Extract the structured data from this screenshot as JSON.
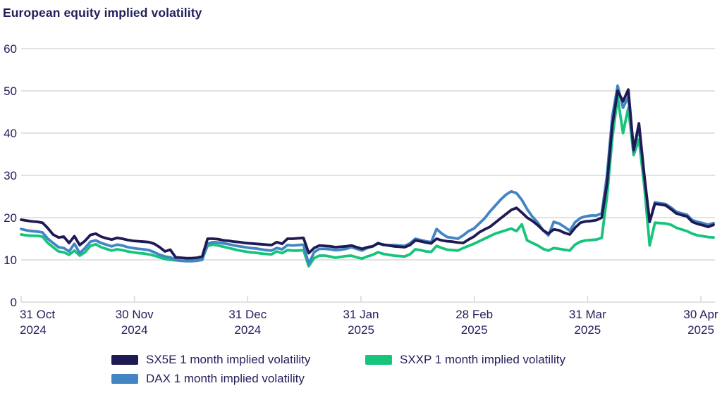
{
  "title": "European equity implied volatility",
  "chart_data": {
    "type": "line",
    "title": "European equity implied volatility",
    "xlabel": "",
    "ylabel": "",
    "ylim": [
      0,
      60
    ],
    "y_ticks": [
      0,
      10,
      20,
      30,
      40,
      50,
      60
    ],
    "x_tick_labels": [
      [
        "31 Oct",
        "2024"
      ],
      [
        "30 Nov",
        "2024"
      ],
      [
        "31 Dec",
        "2024"
      ],
      [
        "31 Jan",
        "2025"
      ],
      [
        "28 Feb",
        "2025"
      ],
      [
        "31 Mar",
        "2025"
      ],
      [
        "30 Apr",
        "2025"
      ]
    ],
    "grid": "horizontal",
    "legend_position": "bottom",
    "axis_color": "#d8d8d8",
    "label_color": "#23205c",
    "series": [
      {
        "name": "SX5E 1 month implied volatility",
        "color": "#1e1a53",
        "values": [
          19.5,
          19.3,
          19.1,
          19.0,
          18.8,
          17.5,
          16.0,
          15.3,
          15.5,
          14.0,
          15.6,
          13.5,
          14.5,
          15.9,
          16.2,
          15.5,
          15.1,
          14.8,
          15.2,
          15.0,
          14.7,
          14.5,
          14.4,
          14.3,
          14.2,
          13.8,
          13.0,
          12.0,
          12.4,
          10.6,
          10.5,
          10.4,
          10.4,
          10.5,
          10.8,
          15.0,
          15.0,
          14.9,
          14.6,
          14.5,
          14.3,
          14.2,
          14.0,
          13.9,
          13.8,
          13.7,
          13.6,
          13.5,
          14.2,
          13.8,
          15.0,
          15.0,
          15.1,
          15.2,
          11.6,
          12.8,
          13.4,
          13.3,
          13.2,
          13.0,
          13.1,
          13.2,
          13.4,
          13.0,
          12.6,
          13.0,
          13.2,
          13.9,
          13.6,
          13.4,
          13.2,
          13.1,
          13.0,
          13.5,
          14.6,
          14.4,
          14.1,
          13.9,
          15.0,
          14.6,
          14.4,
          14.3,
          14.1,
          14.0,
          14.8,
          15.5,
          16.5,
          17.2,
          17.8,
          18.8,
          19.8,
          20.8,
          21.8,
          22.3,
          21.2,
          20.0,
          19.2,
          18.2,
          17.0,
          16.2,
          17.2,
          17.0,
          16.4,
          16.0,
          17.6,
          18.8,
          19.1,
          19.2,
          19.4,
          20.0,
          28.0,
          42.0,
          50.0,
          47.5,
          50.3,
          36.0,
          42.3,
          30.0,
          19.0,
          23.3,
          23.1,
          22.9,
          22.0,
          21.0,
          20.6,
          20.3,
          19.0,
          18.5,
          18.2,
          17.8,
          18.3
        ]
      },
      {
        "name": "DAX 1 month implied volatility",
        "color": "#4285c4",
        "values": [
          17.3,
          17.0,
          16.8,
          16.7,
          16.5,
          15.0,
          14.0,
          13.0,
          12.8,
          12.0,
          13.8,
          11.6,
          12.8,
          14.3,
          14.6,
          14.0,
          13.6,
          13.2,
          13.6,
          13.4,
          13.0,
          12.8,
          12.6,
          12.5,
          12.3,
          11.8,
          11.2,
          10.8,
          10.6,
          10.0,
          9.8,
          9.7,
          9.7,
          9.8,
          10.0,
          13.8,
          14.2,
          14.1,
          13.9,
          13.7,
          13.4,
          13.2,
          13.0,
          12.8,
          12.7,
          12.5,
          12.3,
          12.2,
          12.8,
          12.5,
          13.5,
          13.4,
          13.5,
          13.6,
          9.0,
          11.8,
          12.6,
          12.6,
          12.5,
          12.3,
          12.4,
          12.6,
          13.0,
          12.6,
          12.2,
          12.8,
          13.2,
          14.0,
          13.5,
          13.5,
          13.5,
          13.4,
          13.3,
          13.9,
          15.0,
          14.7,
          14.4,
          14.2,
          17.3,
          16.2,
          15.4,
          15.2,
          15.0,
          15.8,
          16.8,
          17.4,
          18.6,
          19.8,
          21.4,
          22.8,
          24.2,
          25.4,
          26.2,
          25.8,
          24.2,
          22.0,
          20.2,
          18.8,
          17.0,
          15.8,
          19.0,
          18.6,
          17.8,
          16.9,
          18.9,
          19.9,
          20.3,
          20.5,
          20.5,
          21.0,
          30.0,
          44.0,
          51.2,
          46.0,
          48.6,
          35.5,
          41.5,
          29.5,
          19.0,
          23.6,
          23.4,
          23.2,
          22.4,
          21.4,
          21.0,
          20.7,
          19.4,
          19.0,
          18.7,
          18.3,
          18.7
        ]
      },
      {
        "name": "SXXP 1 month implied volatility",
        "color": "#17c47c",
        "values": [
          16.0,
          15.8,
          15.7,
          15.7,
          15.5,
          14.0,
          13.0,
          12.0,
          11.8,
          11.2,
          12.2,
          11.0,
          11.8,
          13.3,
          13.7,
          13.0,
          12.6,
          12.2,
          12.5,
          12.3,
          12.0,
          11.8,
          11.6,
          11.5,
          11.3,
          11.0,
          10.6,
          10.2,
          10.0,
          9.9,
          9.8,
          9.8,
          9.9,
          10.0,
          10.2,
          13.3,
          13.6,
          13.4,
          13.1,
          12.8,
          12.5,
          12.2,
          12.0,
          11.8,
          11.7,
          11.5,
          11.4,
          11.3,
          12.0,
          11.6,
          12.3,
          12.2,
          12.2,
          12.3,
          8.5,
          10.4,
          11.0,
          11.0,
          10.8,
          10.5,
          10.7,
          10.9,
          11.0,
          10.6,
          10.3,
          10.8,
          11.2,
          11.8,
          11.4,
          11.2,
          11.0,
          10.9,
          10.8,
          11.3,
          12.5,
          12.3,
          12.0,
          11.9,
          13.3,
          12.8,
          12.4,
          12.3,
          12.2,
          12.8,
          13.3,
          13.8,
          14.4,
          15.0,
          15.6,
          16.2,
          16.6,
          17.0,
          17.4,
          16.8,
          18.4,
          14.6,
          14.0,
          13.4,
          12.6,
          12.2,
          12.8,
          12.6,
          12.4,
          12.2,
          13.6,
          14.3,
          14.6,
          14.7,
          14.8,
          15.2,
          25.0,
          39.0,
          48.5,
          40.0,
          46.0,
          34.8,
          38.5,
          27.5,
          13.4,
          18.8,
          18.7,
          18.6,
          18.3,
          17.6,
          17.2,
          16.8,
          16.2,
          15.8,
          15.6,
          15.4,
          15.3
        ]
      }
    ]
  }
}
